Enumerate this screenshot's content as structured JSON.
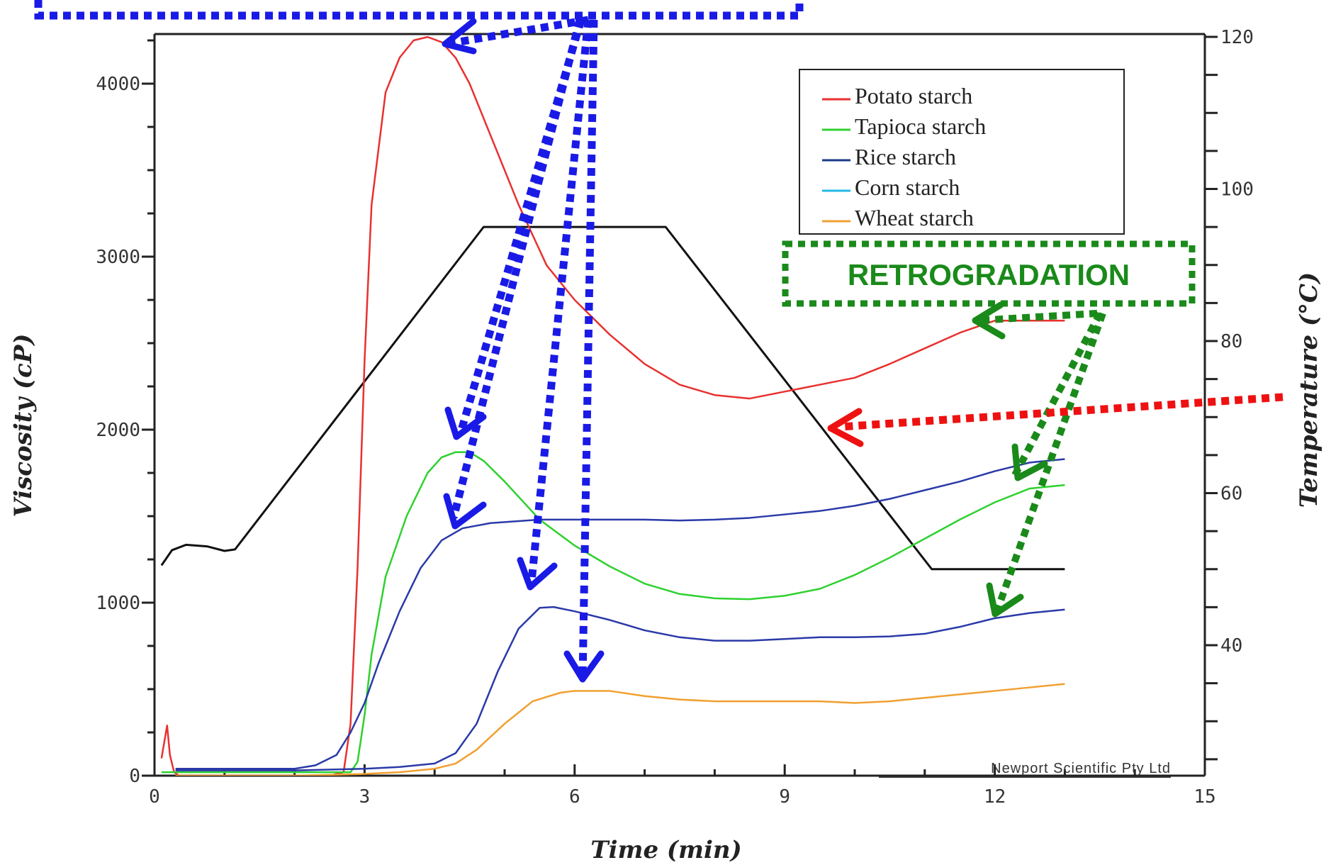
{
  "chart_data": {
    "type": "line",
    "xlabel": "Time (min)",
    "ylabel": "Viscosity (cP)",
    "y2label": "Temperature (°C)",
    "xlim": [
      0,
      15
    ],
    "ylim": [
      0,
      4300
    ],
    "y2lim": [
      22,
      120
    ],
    "x_ticks": [
      0,
      3,
      6,
      9,
      12,
      15
    ],
    "x_tick_labels": [
      "0",
      "3",
      "6",
      "9",
      "12",
      "15"
    ],
    "y_ticks": [
      0,
      1000,
      2000,
      3000,
      4000
    ],
    "y_tick_labels": [
      "0",
      "1000",
      "2000",
      "3000",
      "4000"
    ],
    "y2_ticks": [
      40,
      60,
      80,
      100,
      120
    ],
    "y2_tick_labels": [
      "40",
      "60",
      "80",
      "100",
      "120"
    ],
    "grid": false,
    "legend_position": "top-right",
    "credit": "Newport Scientific Pty Ltd",
    "series": [
      {
        "name": "Potato starch",
        "color": "#e8312f",
        "axis": "left",
        "x": [
          0.1,
          0.18,
          0.22,
          0.28,
          0.35,
          0.5,
          1,
          2,
          2.5,
          2.7,
          2.8,
          2.9,
          3.0,
          3.1,
          3.3,
          3.5,
          3.7,
          3.9,
          4.1,
          4.3,
          4.5,
          4.8,
          5.2,
          5.6,
          6,
          6.5,
          7,
          7.5,
          8,
          8.5,
          9,
          9.5,
          10,
          10.5,
          11,
          11.5,
          12,
          12.5,
          13
        ],
        "y": [
          100,
          290,
          120,
          20,
          0,
          0,
          0,
          0,
          0,
          20,
          300,
          1200,
          2400,
          3300,
          3950,
          4150,
          4250,
          4270,
          4240,
          4150,
          4000,
          3700,
          3300,
          2950,
          2750,
          2550,
          2380,
          2260,
          2200,
          2180,
          2220,
          2260,
          2300,
          2380,
          2470,
          2560,
          2630,
          2630,
          2630
        ]
      },
      {
        "name": "Tapioca starch",
        "color": "#2ed12e",
        "axis": "left",
        "x": [
          0.1,
          0.3,
          0.5,
          1,
          2,
          2.8,
          2.9,
          3.0,
          3.1,
          3.3,
          3.6,
          3.9,
          4.1,
          4.3,
          4.5,
          4.7,
          5,
          5.5,
          6,
          6.5,
          7,
          7.5,
          8,
          8.5,
          9,
          9.5,
          10,
          10.5,
          11,
          11.5,
          12,
          12.5,
          13
        ],
        "y": [
          20,
          20,
          20,
          20,
          20,
          20,
          80,
          350,
          700,
          1150,
          1500,
          1750,
          1840,
          1870,
          1870,
          1820,
          1700,
          1480,
          1330,
          1210,
          1110,
          1050,
          1025,
          1020,
          1040,
          1080,
          1160,
          1260,
          1370,
          1480,
          1580,
          1660,
          1680
        ]
      },
      {
        "name": "Rice starch",
        "color": "#2a3aa8",
        "axis": "left",
        "x": [
          0.3,
          0.5,
          1,
          2,
          2.3,
          2.6,
          2.8,
          3.0,
          3.2,
          3.5,
          3.8,
          4.1,
          4.4,
          4.8,
          5.5,
          6,
          6.5,
          7,
          7.5,
          8,
          8.5,
          9,
          9.5,
          10,
          10.5,
          11,
          11.5,
          12,
          12.5,
          13
        ],
        "y": [
          40,
          40,
          40,
          40,
          60,
          120,
          250,
          420,
          650,
          950,
          1200,
          1360,
          1430,
          1460,
          1480,
          1480,
          1480,
          1480,
          1475,
          1480,
          1490,
          1510,
          1530,
          1560,
          1600,
          1650,
          1700,
          1760,
          1810,
          1830
        ]
      },
      {
        "name": "Corn starch",
        "color": "#2a3aa8",
        "axis": "left",
        "x": [
          0.3,
          1,
          2,
          3,
          3.5,
          4,
          4.3,
          4.6,
          4.9,
          5.2,
          5.5,
          5.7,
          6,
          6.5,
          7,
          7.5,
          8,
          8.5,
          9,
          9.5,
          10,
          10.5,
          11,
          11.5,
          12,
          12.5,
          13
        ],
        "y": [
          30,
          30,
          30,
          40,
          50,
          70,
          130,
          300,
          600,
          850,
          970,
          975,
          950,
          900,
          840,
          800,
          780,
          780,
          790,
          800,
          800,
          805,
          820,
          860,
          910,
          940,
          960
        ]
      },
      {
        "name": "Wheat starch",
        "color": "#f0a030",
        "axis": "left",
        "x": [
          0.3,
          1,
          2,
          3,
          3.5,
          4,
          4.3,
          4.6,
          5,
          5.4,
          5.8,
          6,
          6.5,
          7,
          7.5,
          8,
          8.5,
          9,
          9.5,
          10,
          10.5,
          11,
          11.5,
          12,
          12.5,
          13
        ],
        "y": [
          0,
          0,
          0,
          10,
          20,
          40,
          70,
          150,
          300,
          430,
          480,
          490,
          490,
          460,
          440,
          430,
          430,
          430,
          430,
          420,
          430,
          450,
          470,
          490,
          510,
          530
        ]
      }
    ],
    "temperature_profile": {
      "color": "#111111",
      "axis": "right",
      "x": [
        0.1,
        0.25,
        0.45,
        0.75,
        1.0,
        1.15,
        4.7,
        7.3,
        11.1,
        13.0
      ],
      "y": [
        50.5,
        52.5,
        53.2,
        53.0,
        52.4,
        52.6,
        95,
        95,
        50,
        50
      ]
    },
    "annotations": [
      {
        "text": "RETROGRADATION",
        "color": "#1a8a1a"
      },
      {
        "text": "",
        "color": "#1a1ae6"
      },
      {
        "text": "",
        "color": "#ee1111"
      }
    ]
  }
}
